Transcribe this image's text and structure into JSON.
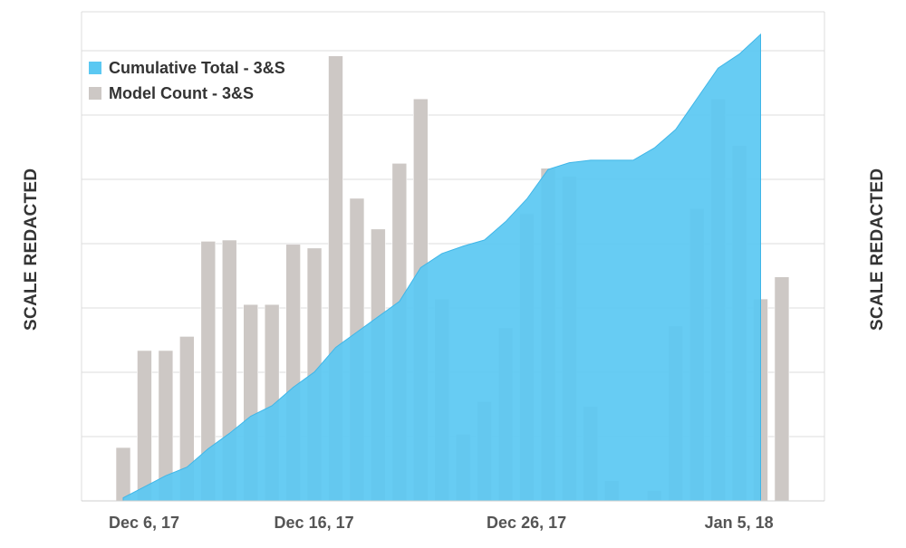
{
  "chart_data": {
    "type": "bar+area",
    "y_axis_left_label": "SCALE REDACTED",
    "y_axis_right_label": "SCALE REDACTED",
    "x_tick_labels": [
      {
        "day_index": 0,
        "label": "Dec 6, 17"
      },
      {
        "day_index": 8,
        "label": "Dec 16, 17"
      },
      {
        "day_index": 18,
        "label": "Dec 26, 17"
      },
      {
        "day_index": 28,
        "label": "Jan 5, 18"
      }
    ],
    "legend": {
      "placement": "top-left",
      "items": [
        {
          "label": "Cumulative Total - 3&S",
          "color": "#5bc8f2"
        },
        {
          "label": "Model Count - 3&S",
          "color": "#cdc8c5"
        }
      ]
    },
    "ylim": [
      0,
      7.6
    ],
    "grid": true,
    "series": [
      {
        "name": "Model Count - 3&S",
        "type": "bar",
        "color": "#cdc8c5",
        "values": [
          0.87,
          2.45,
          2.45,
          2.68,
          4.23,
          4.25,
          3.2,
          3.2,
          4.18,
          4.12,
          7.25,
          4.93,
          4.43,
          5.5,
          6.55,
          3.29,
          1.09,
          1.62,
          2.82,
          4.68,
          5.42,
          5.29,
          1.54,
          0.33,
          0.0,
          0.17,
          2.85,
          4.76,
          6.55,
          5.79,
          3.29,
          3.65
        ]
      },
      {
        "name": "Cumulative Total - 3&S",
        "type": "area",
        "color": "#5bc8f2",
        "values": [
          0.05,
          0.23,
          0.41,
          0.55,
          0.85,
          1.1,
          1.38,
          1.55,
          1.85,
          2.1,
          2.5,
          2.75,
          3.0,
          3.25,
          3.8,
          4.03,
          4.15,
          4.25,
          4.55,
          4.92,
          5.4,
          5.51,
          5.55,
          5.55,
          5.55,
          5.75,
          6.05,
          6.55,
          7.05,
          7.28,
          7.6
        ]
      }
    ]
  }
}
